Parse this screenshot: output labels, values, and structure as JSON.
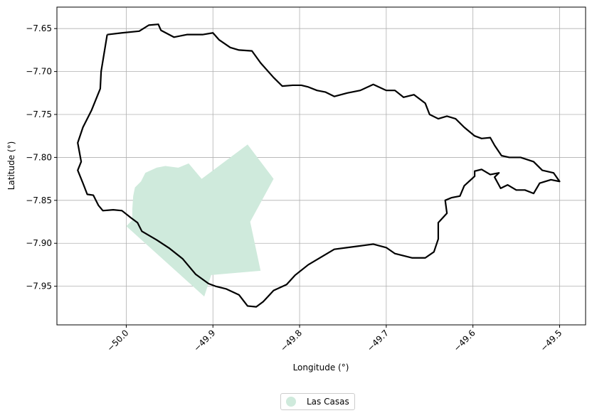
{
  "chart_data": {
    "type": "map",
    "xlabel": "Longitude (°)",
    "ylabel": "Latitude (°)",
    "xlim": [
      -50.08,
      -49.47
    ],
    "ylim": [
      -7.995,
      -7.625
    ],
    "x_ticks": [
      -50.0,
      -49.9,
      -49.8,
      -49.7,
      -49.6,
      -49.5
    ],
    "x_tick_labels": [
      "−50.0",
      "−49.9",
      "−49.8",
      "−49.7",
      "−49.6",
      "−49.5"
    ],
    "y_ticks": [
      -7.65,
      -7.7,
      -7.75,
      -7.8,
      -7.85,
      -7.9,
      -7.95
    ],
    "y_tick_labels": [
      "−7.65",
      "−7.70",
      "−7.75",
      "−7.80",
      "−7.85",
      "−7.90",
      "−7.95"
    ],
    "grid": true,
    "legend_position": "bottom-center",
    "boundary": {
      "color": "#000000",
      "coordinates": [
        [
          -50.022,
          -7.657
        ],
        [
          -50.005,
          -7.655
        ],
        [
          -49.985,
          -7.653
        ],
        [
          -49.974,
          -7.646
        ],
        [
          -49.963,
          -7.645
        ],
        [
          -49.96,
          -7.652
        ],
        [
          -49.945,
          -7.66
        ],
        [
          -49.93,
          -7.657
        ],
        [
          -49.912,
          -7.657
        ],
        [
          -49.9,
          -7.655
        ],
        [
          -49.893,
          -7.663
        ],
        [
          -49.88,
          -7.672
        ],
        [
          -49.87,
          -7.675
        ],
        [
          -49.855,
          -7.676
        ],
        [
          -49.845,
          -7.69
        ],
        [
          -49.83,
          -7.707
        ],
        [
          -49.82,
          -7.717
        ],
        [
          -49.808,
          -7.716
        ],
        [
          -49.798,
          -7.716
        ],
        [
          -49.79,
          -7.718
        ],
        [
          -49.78,
          -7.722
        ],
        [
          -49.77,
          -7.724
        ],
        [
          -49.76,
          -7.729
        ],
        [
          -49.745,
          -7.725
        ],
        [
          -49.73,
          -7.722
        ],
        [
          -49.715,
          -7.715
        ],
        [
          -49.7,
          -7.722
        ],
        [
          -49.69,
          -7.722
        ],
        [
          -49.68,
          -7.73
        ],
        [
          -49.668,
          -7.727
        ],
        [
          -49.655,
          -7.737
        ],
        [
          -49.65,
          -7.75
        ],
        [
          -49.64,
          -7.755
        ],
        [
          -49.63,
          -7.752
        ],
        [
          -49.62,
          -7.755
        ],
        [
          -49.61,
          -7.765
        ],
        [
          -49.598,
          -7.775
        ],
        [
          -49.59,
          -7.778
        ],
        [
          -49.58,
          -7.777
        ],
        [
          -49.575,
          -7.786
        ],
        [
          -49.567,
          -7.798
        ],
        [
          -49.558,
          -7.8
        ],
        [
          -49.545,
          -7.8
        ],
        [
          -49.53,
          -7.805
        ],
        [
          -49.52,
          -7.815
        ],
        [
          -49.507,
          -7.818
        ],
        [
          -49.5,
          -7.828
        ],
        [
          -49.51,
          -7.826
        ],
        [
          -49.523,
          -7.83
        ],
        [
          -49.53,
          -7.842
        ],
        [
          -49.54,
          -7.838
        ],
        [
          -49.55,
          -7.838
        ],
        [
          -49.56,
          -7.832
        ],
        [
          -49.568,
          -7.836
        ],
        [
          -49.575,
          -7.823
        ],
        [
          -49.57,
          -7.818
        ],
        [
          -49.58,
          -7.82
        ],
        [
          -49.59,
          -7.814
        ],
        [
          -49.598,
          -7.816
        ],
        [
          -49.598,
          -7.822
        ],
        [
          -49.61,
          -7.833
        ],
        [
          -49.615,
          -7.845
        ],
        [
          -49.625,
          -7.847
        ],
        [
          -49.632,
          -7.85
        ],
        [
          -49.63,
          -7.865
        ],
        [
          -49.64,
          -7.876
        ],
        [
          -49.64,
          -7.895
        ],
        [
          -49.645,
          -7.91
        ],
        [
          -49.655,
          -7.917
        ],
        [
          -49.67,
          -7.917
        ],
        [
          -49.69,
          -7.912
        ],
        [
          -49.7,
          -7.905
        ],
        [
          -49.715,
          -7.901
        ],
        [
          -49.73,
          -7.903
        ],
        [
          -49.745,
          -7.905
        ],
        [
          -49.76,
          -7.907
        ],
        [
          -49.775,
          -7.916
        ],
        [
          -49.79,
          -7.925
        ],
        [
          -49.805,
          -7.937
        ],
        [
          -49.815,
          -7.948
        ],
        [
          -49.83,
          -7.955
        ],
        [
          -49.842,
          -7.968
        ],
        [
          -49.85,
          -7.974
        ],
        [
          -49.86,
          -7.973
        ],
        [
          -49.87,
          -7.96
        ],
        [
          -49.885,
          -7.953
        ],
        [
          -49.897,
          -7.95
        ],
        [
          -49.905,
          -7.947
        ],
        [
          -49.92,
          -7.936
        ],
        [
          -49.935,
          -7.918
        ],
        [
          -49.95,
          -7.906
        ],
        [
          -49.965,
          -7.896
        ],
        [
          -49.982,
          -7.886
        ],
        [
          -49.987,
          -7.876
        ],
        [
          -49.995,
          -7.87
        ],
        [
          -50.005,
          -7.862
        ],
        [
          -50.015,
          -7.861
        ],
        [
          -50.027,
          -7.862
        ],
        [
          -50.032,
          -7.856
        ],
        [
          -50.038,
          -7.844
        ],
        [
          -50.045,
          -7.843
        ],
        [
          -50.05,
          -7.83
        ],
        [
          -50.056,
          -7.815
        ],
        [
          -50.052,
          -7.805
        ],
        [
          -50.056,
          -7.783
        ],
        [
          -50.05,
          -7.765
        ],
        [
          -50.04,
          -7.745
        ],
        [
          -50.03,
          -7.72
        ],
        [
          -50.029,
          -7.7
        ],
        [
          -50.022,
          -7.657
        ]
      ]
    },
    "series": [
      {
        "name": "Las Casas",
        "color": "#cfeadc",
        "coordinates": [
          [
            -50.0,
            -7.88
          ],
          [
            -49.91,
            -7.962
          ],
          [
            -49.902,
            -7.937
          ],
          [
            -49.845,
            -7.932
          ],
          [
            -49.857,
            -7.875
          ],
          [
            -49.83,
            -7.825
          ],
          [
            -49.86,
            -7.785
          ],
          [
            -49.913,
            -7.825
          ],
          [
            -49.928,
            -7.807
          ],
          [
            -49.94,
            -7.812
          ],
          [
            -49.955,
            -7.81
          ],
          [
            -49.965,
            -7.812
          ],
          [
            -49.978,
            -7.818
          ],
          [
            -49.983,
            -7.828
          ],
          [
            -49.99,
            -7.835
          ],
          [
            -49.992,
            -7.845
          ],
          [
            -49.993,
            -7.86
          ],
          [
            -49.993,
            -7.873
          ],
          [
            -50.0,
            -7.88
          ]
        ]
      }
    ]
  },
  "legend": {
    "label": "Las Casas",
    "marker_color": "#cfeadc"
  }
}
